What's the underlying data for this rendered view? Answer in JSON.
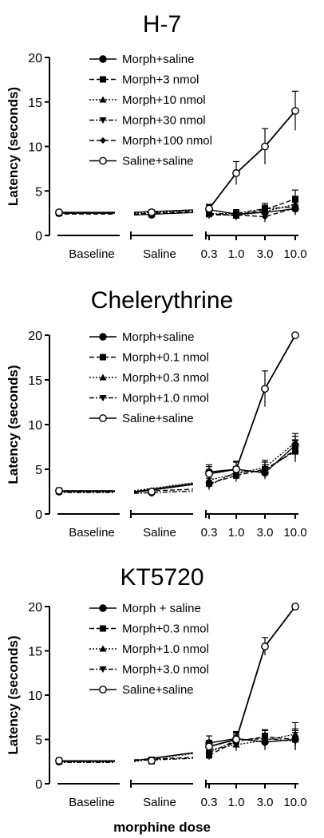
{
  "xlabel": "morphine dose",
  "colors": {
    "ink": "#000000",
    "background": "#ffffff"
  },
  "chart_data": [
    {
      "type": "line",
      "title": "H-7",
      "ylabel": "Latency (seconds)",
      "ylim": [
        0,
        20
      ],
      "yticks": [
        0,
        5,
        10,
        15,
        20
      ],
      "x_groups": [
        "Baseline",
        "Saline"
      ],
      "x": [
        "0.3",
        "1.0",
        "3.0",
        "10.0"
      ],
      "legend_position": "top-left",
      "series": [
        {
          "name": "Morph+saline",
          "marker": "circle-filled",
          "dash": "solid",
          "baseline": 2.5,
          "saline": 2.3,
          "values": [
            2.9,
            2.4,
            2.6,
            3.0
          ],
          "err": [
            0.5,
            0.5,
            0.6,
            0.7
          ]
        },
        {
          "name": "Morph+3 nmol",
          "marker": "square",
          "dash": "dashed",
          "baseline": 2.5,
          "saline": 2.4,
          "values": [
            2.4,
            2.3,
            2.9,
            4.1
          ],
          "err": [
            0.4,
            0.4,
            0.5,
            1.0
          ]
        },
        {
          "name": "Morph+10 nmol",
          "marker": "triangle-up",
          "dash": "dotted",
          "baseline": 2.6,
          "saline": 2.5,
          "values": [
            2.5,
            2.2,
            2.7,
            3.5
          ],
          "err": [
            0.4,
            0.5,
            0.6,
            0.8
          ]
        },
        {
          "name": "Morph+30 nmol",
          "marker": "triangle-down",
          "dash": "dashdot",
          "baseline": 2.5,
          "saline": 2.6,
          "values": [
            2.4,
            2.5,
            3.0,
            3.2
          ],
          "err": [
            0.5,
            0.4,
            0.6,
            0.7
          ]
        },
        {
          "name": "Morph+100 nmol",
          "marker": "diamond",
          "dash": "dashed",
          "baseline": 2.4,
          "saline": 2.4,
          "values": [
            2.3,
            2.3,
            2.1,
            3.1
          ],
          "err": [
            0.4,
            0.4,
            0.6,
            0.8
          ]
        },
        {
          "name": "Saline+saline",
          "marker": "circle-open",
          "dash": "solid",
          "baseline": 2.6,
          "saline": 2.6,
          "values": [
            3.0,
            7.0,
            10.0,
            14.0
          ],
          "err": [
            0.5,
            1.3,
            2.0,
            2.2
          ]
        }
      ]
    },
    {
      "type": "line",
      "title": "Chelerythrine",
      "ylabel": "Latency (seconds)",
      "ylim": [
        0,
        20
      ],
      "yticks": [
        0,
        5,
        10,
        15,
        20
      ],
      "x_groups": [
        "Baseline",
        "Saline"
      ],
      "x": [
        "0.3",
        "1.0",
        "3.0",
        "10.0"
      ],
      "legend_position": "top-left",
      "series": [
        {
          "name": "Morph+saline",
          "marker": "circle-filled",
          "dash": "solid",
          "baseline": 2.5,
          "saline": 2.4,
          "values": [
            4.7,
            5.0,
            4.6,
            7.7
          ],
          "err": [
            0.8,
            0.8,
            0.7,
            1.0
          ]
        },
        {
          "name": "Morph+0.1 nmol",
          "marker": "square",
          "dash": "dashed",
          "baseline": 2.6,
          "saline": 2.5,
          "values": [
            3.4,
            4.3,
            5.0,
            7.0
          ],
          "err": [
            0.6,
            0.7,
            0.8,
            1.2
          ]
        },
        {
          "name": "Morph+0.3 nmol",
          "marker": "triangle-up",
          "dash": "dotted",
          "baseline": 2.5,
          "saline": 2.6,
          "values": [
            3.8,
            4.5,
            5.2,
            8.0
          ],
          "err": [
            0.6,
            0.7,
            0.8,
            1.0
          ]
        },
        {
          "name": "Morph+1.0 nmol",
          "marker": "triangle-down",
          "dash": "dashdot",
          "baseline": 2.4,
          "saline": 2.3,
          "values": [
            3.2,
            4.7,
            4.8,
            7.2
          ],
          "err": [
            0.5,
            0.6,
            0.7,
            1.1
          ]
        },
        {
          "name": "Saline+saline",
          "marker": "circle-open",
          "dash": "solid",
          "baseline": 2.6,
          "saline": 2.5,
          "values": [
            4.5,
            5.0,
            14.0,
            20.0
          ],
          "err": [
            0.8,
            0.9,
            2.0,
            0.3
          ]
        }
      ]
    },
    {
      "type": "line",
      "title": "KT5720",
      "ylabel": "Latency (seconds)",
      "ylim": [
        0,
        20
      ],
      "yticks": [
        0,
        5,
        10,
        15,
        20
      ],
      "x_groups": [
        "Baseline",
        "Saline"
      ],
      "x": [
        "0.3",
        "1.0",
        "3.0",
        "10.0"
      ],
      "legend_position": "top-left",
      "series": [
        {
          "name": "Morph + saline",
          "marker": "circle-filled",
          "dash": "solid",
          "baseline": 2.5,
          "saline": 2.6,
          "values": [
            4.6,
            5.1,
            4.7,
            5.0
          ],
          "err": [
            0.8,
            0.8,
            0.9,
            1.0
          ]
        },
        {
          "name": "Morph+0.3 nmol",
          "marker": "square",
          "dash": "dashed",
          "baseline": 2.6,
          "saline": 2.7,
          "values": [
            3.2,
            4.8,
            5.3,
            5.0
          ],
          "err": [
            0.5,
            0.7,
            0.8,
            1.2
          ]
        },
        {
          "name": "Morph+1.0 nmol",
          "marker": "triangle-up",
          "dash": "dotted",
          "baseline": 2.5,
          "saline": 2.5,
          "values": [
            3.8,
            4.4,
            4.9,
            5.6
          ],
          "err": [
            0.6,
            0.7,
            0.8,
            1.3
          ]
        },
        {
          "name": "Morph+3.0 nmol",
          "marker": "triangle-down",
          "dash": "dashdot",
          "baseline": 2.4,
          "saline": 2.6,
          "values": [
            3.5,
            4.9,
            5.1,
            4.8
          ],
          "err": [
            0.5,
            0.8,
            0.9,
            1.0
          ]
        },
        {
          "name": "Saline+saline",
          "marker": "circle-open",
          "dash": "solid",
          "baseline": 2.6,
          "saline": 2.6,
          "values": [
            4.2,
            5.0,
            15.5,
            20.0
          ],
          "err": [
            0.7,
            0.8,
            1.0,
            0.3
          ]
        }
      ]
    }
  ]
}
